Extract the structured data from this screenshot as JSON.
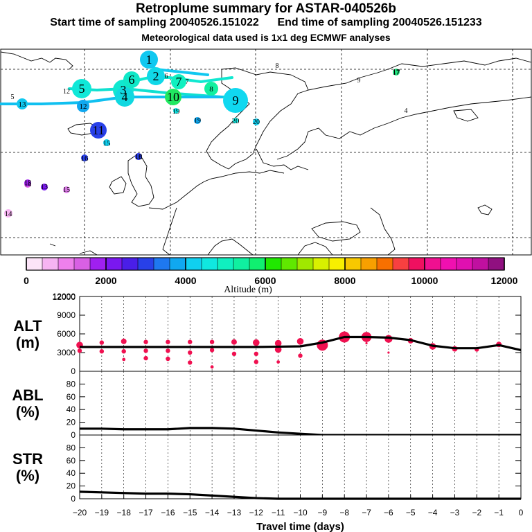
{
  "header": {
    "title": "Retroplume summary for ASTAR-040526b",
    "sampling_line": "Start time of sampling 20040526.151022      End time of sampling 20040526.151233",
    "met_line": "Meteorological data used is 1x1 deg ECMWF analyses"
  },
  "colorbar": {
    "label": "Altitude (m)",
    "tick_labels": [
      "0",
      "2000",
      "4000",
      "6000",
      "8000",
      "10000",
      "12000"
    ],
    "colors": [
      "#fce4f8",
      "#f6b4f2",
      "#ee80ec",
      "#d860e4",
      "#a020f0",
      "#7a18f0",
      "#4a1ee8",
      "#2840e8",
      "#1e78f0",
      "#10a8f0",
      "#10d0f0",
      "#10e8e0",
      "#10f0c0",
      "#10f0a0",
      "#10f070",
      "#20e800",
      "#60e800",
      "#a0e800",
      "#d8f000",
      "#f8f000",
      "#f8c800",
      "#f8a000",
      "#f87000",
      "#f84040",
      "#f01060",
      "#f01090",
      "#f010b0",
      "#e010b0",
      "#c010a0",
      "#901080"
    ]
  },
  "map": {
    "plume_labels": [
      {
        "t": "1",
        "c": "#10c8f0",
        "s": 13
      },
      {
        "t": "2",
        "c": "#10d8e8",
        "s": 13
      },
      {
        "t": "3",
        "c": "#10e8d0",
        "s": 15
      },
      {
        "t": "4",
        "c": "#10d8e0",
        "s": 14
      },
      {
        "t": "5",
        "c": "#10e8d8",
        "s": 14
      },
      {
        "t": "6",
        "c": "#10e8c8",
        "s": 12
      },
      {
        "t": "7",
        "c": "#10f0c0",
        "s": 11
      },
      {
        "t": "8",
        "c": "#10f0a0",
        "s": 10
      },
      {
        "t": "9",
        "c": "#10d8f0",
        "s": 18
      },
      {
        "t": "10",
        "c": "#20e860",
        "s": 12
      },
      {
        "t": "11",
        "c": "#2840e8",
        "s": 12
      },
      {
        "t": "12",
        "c": "#10a8f0",
        "s": 9
      },
      {
        "t": "13",
        "c": "#10c8f0",
        "s": 8
      },
      {
        "t": "14",
        "c": "#f6b4f2",
        "s": 6
      },
      {
        "t": "15",
        "c": "#10d0f0",
        "s": 5
      },
      {
        "t": "16",
        "c": "#2840e8",
        "s": 5
      },
      {
        "t": "17",
        "c": "#60e880",
        "s": 4
      },
      {
        "t": "18",
        "c": "#a020f0",
        "s": 5
      },
      {
        "t": "19",
        "c": "#10e0e0",
        "s": 4
      },
      {
        "t": "20",
        "c": "#10e8e0",
        "s": 4
      }
    ],
    "outlier_labels": [
      "4",
      "5",
      "6",
      "7",
      "8",
      "9",
      "12",
      "13",
      "14",
      "15",
      "16",
      "17",
      "18",
      "19",
      "20"
    ]
  },
  "chart_data": [
    {
      "type": "line",
      "name": "ALT",
      "ylabel": "ALT\n(m)",
      "ylim": [
        0,
        12000
      ],
      "yticks": [
        0,
        3000,
        6000,
        9000,
        12000
      ],
      "xlim": [
        -20,
        0
      ],
      "x": [
        -20,
        -19,
        -18,
        -17,
        -16,
        -15,
        -14,
        -13,
        -12,
        -11,
        -10,
        -9,
        -8,
        -7,
        -6,
        -5,
        -4,
        -3,
        -2,
        -1,
        0
      ],
      "values": [
        3900,
        3900,
        3900,
        3900,
        3900,
        3900,
        3900,
        3900,
        3900,
        3950,
        4000,
        4600,
        5500,
        5500,
        5400,
        5000,
        4100,
        3700,
        3700,
        4200,
        3400
      ],
      "dots_note": "red dots show individual cluster altitudes",
      "cluster_points": [
        [
          -20,
          4200,
          3
        ],
        [
          -20,
          3300,
          2
        ],
        [
          -19,
          4600,
          2
        ],
        [
          -19,
          3200,
          2
        ],
        [
          -18,
          4800,
          2.5
        ],
        [
          -18,
          3200,
          2
        ],
        [
          -18,
          1900,
          1.5
        ],
        [
          -17,
          4700,
          2
        ],
        [
          -17,
          3300,
          2
        ],
        [
          -17,
          2100,
          2
        ],
        [
          -16,
          4700,
          2
        ],
        [
          -16,
          3300,
          2
        ],
        [
          -16,
          2000,
          2
        ],
        [
          -15,
          4700,
          2
        ],
        [
          -15,
          3000,
          2
        ],
        [
          -15,
          1400,
          2
        ],
        [
          -14,
          4700,
          2
        ],
        [
          -14,
          3400,
          2
        ],
        [
          -14,
          700,
          1.5
        ],
        [
          -13,
          4700,
          2.5
        ],
        [
          -13,
          2800,
          2
        ],
        [
          -12,
          4600,
          3
        ],
        [
          -12,
          2800,
          2
        ],
        [
          -12,
          1500,
          2
        ],
        [
          -11,
          4500,
          3
        ],
        [
          -11,
          3500,
          3
        ],
        [
          -11,
          1500,
          1.5
        ],
        [
          -10,
          4800,
          3
        ],
        [
          -10,
          2500,
          2
        ],
        [
          -9,
          4200,
          5
        ],
        [
          -8,
          5500,
          5
        ],
        [
          -7,
          5500,
          4.5
        ],
        [
          -7,
          4500,
          1
        ],
        [
          -6,
          5200,
          3.5
        ],
        [
          -6,
          3000,
          1
        ],
        [
          -5,
          4900,
          2.5
        ],
        [
          -4,
          4000,
          3
        ],
        [
          -3,
          3600,
          2.5
        ],
        [
          -2,
          3500,
          2
        ],
        [
          -1,
          4300,
          2.5
        ]
      ]
    },
    {
      "type": "line",
      "name": "ABL",
      "ylabel": "ABL\n(%)",
      "ylim": [
        0,
        100
      ],
      "yticks": [
        0,
        20,
        40,
        60,
        80
      ],
      "xlim": [
        -20,
        0
      ],
      "x": [
        -20,
        -19,
        -18,
        -17,
        -16,
        -15,
        -14,
        -13,
        -12,
        -11,
        -10,
        -9,
        -8,
        -7,
        -6,
        -5,
        -4,
        -3,
        -2,
        -1,
        0
      ],
      "values": [
        10,
        10,
        9,
        9,
        9,
        11,
        11,
        10,
        7,
        4,
        2,
        0,
        0,
        0,
        0,
        0,
        0,
        0,
        0,
        0,
        0
      ]
    },
    {
      "type": "line",
      "name": "STR",
      "ylabel": "STR\n(%)",
      "ylim": [
        0,
        100
      ],
      "yticks": [
        0,
        20,
        40,
        60,
        80
      ],
      "xlim": [
        -20,
        0
      ],
      "x": [
        -20,
        -19,
        -18,
        -17,
        -16,
        -15,
        -14,
        -13,
        -12,
        -11,
        -10,
        -9,
        -8,
        -7,
        -6,
        -5,
        -4,
        -3,
        -2,
        -1,
        0
      ],
      "values": [
        11,
        10,
        9,
        8,
        8,
        7,
        5,
        3,
        1,
        0,
        0,
        0,
        0,
        0,
        0,
        0,
        0,
        0,
        0,
        0,
        0
      ],
      "xlabel": "Travel time (days)",
      "xticks": [
        -20,
        -19,
        -18,
        -17,
        -16,
        -15,
        -14,
        -13,
        -12,
        -11,
        -10,
        -9,
        -8,
        -7,
        -6,
        -5,
        -4,
        -3,
        -2,
        -1,
        0
      ],
      "xtick_labels": [
        "−20",
        "−19",
        "−18",
        "−17",
        "−16",
        "−15",
        "−14",
        "−13",
        "−12",
        "−11",
        "−10",
        "−9",
        "−8",
        "−7",
        "−6",
        "−5",
        "−4",
        "−3",
        "−2",
        "−1",
        "0"
      ]
    }
  ]
}
